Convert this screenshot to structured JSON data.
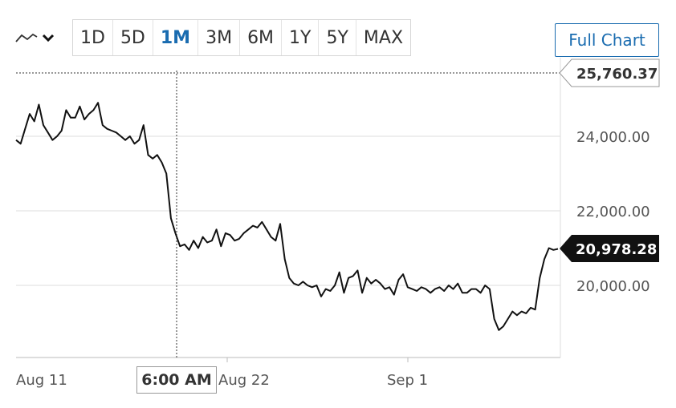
{
  "toolbar": {
    "chart_type_icon": "line-chart-icon",
    "dropdown_icon": "chevron-down-icon",
    "ranges": [
      "1D",
      "5D",
      "1M",
      "3M",
      "6M",
      "1Y",
      "5Y",
      "MAX"
    ],
    "active_range": "1M",
    "full_chart_label": "Full Chart"
  },
  "colors": {
    "accent": "#1a6cb0",
    "line": "#111111",
    "grid": "#dddddd",
    "last_price_bg": "#111111"
  },
  "hover": {
    "time_label": "6:00 AM",
    "price_label": "25,760.37"
  },
  "chart_data": {
    "type": "line",
    "title": "",
    "xlabel": "",
    "ylabel": "",
    "x_ticks": [
      "Aug 11",
      "Aug 22",
      "Sep 1"
    ],
    "y_ticks": [
      "24,000.00",
      "22,000.00",
      "20,000.00"
    ],
    "y_tick_values": [
      24000,
      22000,
      20000
    ],
    "ylim": [
      18060,
      25760
    ],
    "grid": true,
    "last_value_label": "20,978.28",
    "series": [
      {
        "values": [
          23900,
          23800,
          24200,
          24600,
          24400,
          24850,
          24300,
          24100,
          23900,
          24000,
          24150,
          24700,
          24500,
          24500,
          24800,
          24450,
          24600,
          24700,
          24900,
          24300,
          24200,
          24150,
          24100,
          24000,
          23900,
          24000,
          23800,
          23900,
          24300,
          23500,
          23400,
          23500,
          23300,
          23000,
          21800,
          21400,
          21050,
          21100,
          20950,
          21200,
          21000,
          21300,
          21150,
          21200,
          21500,
          21050,
          21400,
          21350,
          21200,
          21250,
          21400,
          21500,
          21600,
          21550,
          21700,
          21500,
          21300,
          21200,
          21650,
          20700,
          20200,
          20050,
          20000,
          20100,
          20000,
          19950,
          20000,
          19700,
          19900,
          19850,
          20000,
          20350,
          19800,
          20200,
          20250,
          20400,
          19800,
          20200,
          20050,
          20150,
          20050,
          19900,
          19950,
          19750,
          20150,
          20300,
          19950,
          19900,
          19850,
          19950,
          19900,
          19800,
          19900,
          19950,
          19850,
          20000,
          19900,
          20050,
          19800,
          19800,
          19900,
          19900,
          19800,
          20000,
          19900,
          19100,
          18800,
          18900,
          19100,
          19300,
          19200,
          19300,
          19250,
          19400,
          19350,
          20200,
          20700,
          21000,
          20950,
          20978.28
        ]
      }
    ]
  }
}
